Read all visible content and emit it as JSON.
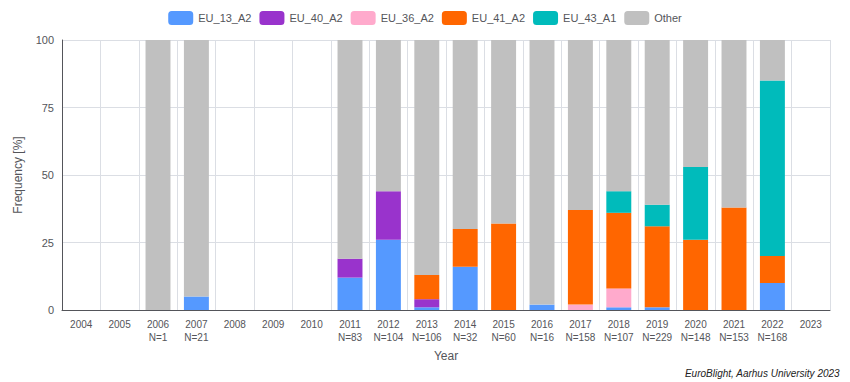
{
  "chart_data": {
    "type": "bar",
    "stacked": true,
    "xlabel": "Year",
    "ylabel": "Frequency [%]",
    "categories": [
      "2004",
      "2005",
      "2006",
      "2007",
      "2008",
      "2009",
      "2010",
      "2011",
      "2012",
      "2013",
      "2014",
      "2015",
      "2016",
      "2017",
      "2018",
      "2019",
      "2020",
      "2021",
      "2022",
      "2023"
    ],
    "series": [
      {
        "name": "EU_13_A2",
        "color": "#5599ff",
        "values": [
          0,
          0,
          0,
          5,
          0,
          0,
          0,
          12,
          26,
          1,
          16,
          0,
          2,
          0,
          1,
          1,
          0,
          0,
          10,
          0
        ]
      },
      {
        "name": "EU_40_A2",
        "color": "#9933cc",
        "values": [
          0,
          0,
          0,
          0,
          0,
          0,
          0,
          7,
          18,
          3,
          0,
          0,
          0,
          0,
          0,
          0,
          0,
          0,
          0,
          0
        ]
      },
      {
        "name": "EU_36_A2",
        "color": "#ffaacc",
        "values": [
          0,
          0,
          0,
          0,
          0,
          0,
          0,
          0,
          0,
          0,
          0,
          0,
          0,
          2,
          7,
          0,
          0,
          0,
          0,
          0
        ]
      },
      {
        "name": "EU_41_A2",
        "color": "#ff6600",
        "values": [
          0,
          0,
          0,
          0,
          0,
          0,
          0,
          0,
          0,
          9,
          14,
          32,
          0,
          35,
          28,
          30,
          26,
          38,
          10,
          0
        ]
      },
      {
        "name": "EU_43_A1",
        "color": "#00bbbb",
        "values": [
          0,
          0,
          0,
          0,
          0,
          0,
          0,
          0,
          0,
          0,
          0,
          0,
          0,
          0,
          8,
          8,
          27,
          0,
          65,
          0
        ]
      },
      {
        "name": "Other",
        "color": "#c0c0c0",
        "values": [
          0,
          0,
          100,
          95,
          0,
          0,
          0,
          81,
          56,
          87,
          70,
          68,
          98,
          63,
          56,
          61,
          47,
          62,
          15,
          0
        ]
      }
    ],
    "ylim": [
      0,
      100
    ],
    "yticks": [
      0,
      25,
      50,
      75,
      100
    ],
    "grid": true,
    "legend": "top",
    "annotations": [
      {
        "category": "2006",
        "text": "N=1"
      },
      {
        "category": "2007",
        "text": "N=21"
      },
      {
        "category": "2011",
        "text": "N=83"
      },
      {
        "category": "2012",
        "text": "N=104"
      },
      {
        "category": "2013",
        "text": "N=106"
      },
      {
        "category": "2014",
        "text": "N=32"
      },
      {
        "category": "2015",
        "text": "N=60"
      },
      {
        "category": "2016",
        "text": "N=16"
      },
      {
        "category": "2017",
        "text": "N=158"
      },
      {
        "category": "2018",
        "text": "N=107"
      },
      {
        "category": "2019",
        "text": "N=229"
      },
      {
        "category": "2020",
        "text": "N=148"
      },
      {
        "category": "2021",
        "text": "N=153"
      },
      {
        "category": "2022",
        "text": "N=168"
      }
    ],
    "footer": "EuroBlight, Aarhus University 2023"
  }
}
